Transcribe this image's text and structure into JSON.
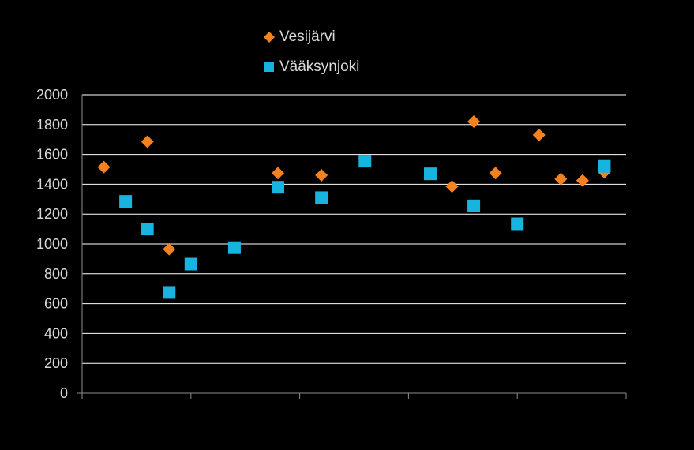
{
  "chart_data": {
    "type": "scatter",
    "title": "",
    "xlabel": "",
    "ylabel": "",
    "ylim": [
      0,
      2000
    ],
    "yticks": [
      0,
      200,
      400,
      600,
      800,
      1000,
      1200,
      1400,
      1600,
      1800,
      2000
    ],
    "xlim": [
      0,
      25
    ],
    "grid": true,
    "legend_position": "top",
    "series": [
      {
        "name": "Vesijärvi",
        "marker": "diamond",
        "color": "#f5821f",
        "x": [
          1,
          3,
          4,
          9,
          11,
          17,
          18,
          19,
          21,
          22,
          23,
          24
        ],
        "y": [
          1515,
          1685,
          965,
          1475,
          1460,
          1385,
          1820,
          1475,
          1730,
          1435,
          1425,
          1480
        ]
      },
      {
        "name": "Vääksynjoki",
        "marker": "square",
        "color": "#18b4e0",
        "x": [
          2,
          3,
          4,
          5,
          7,
          9,
          11,
          13,
          16,
          18,
          20,
          24
        ],
        "y": [
          1285,
          1100,
          675,
          865,
          975,
          1380,
          1310,
          1555,
          1470,
          1255,
          1135,
          1520
        ]
      }
    ]
  }
}
